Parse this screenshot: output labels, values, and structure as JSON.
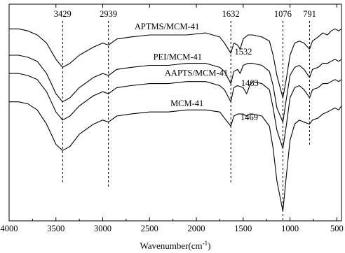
{
  "chart_data": {
    "type": "line",
    "title": "",
    "xlabel": "Wavenumber(cm",
    "xlabel_sup": "-1",
    "xlabel_close": ")",
    "ylabel": "",
    "xlim": [
      4000,
      450
    ],
    "x_reversed": true,
    "yticks_shown": false,
    "grid": false,
    "xticks": [
      {
        "value": 4000,
        "label": "4000"
      },
      {
        "value": 3500,
        "label": "3500"
      },
      {
        "value": 3000,
        "label": "3000"
      },
      {
        "value": 2500,
        "label": "2500"
      },
      {
        "value": 2000,
        "label": "2000"
      },
      {
        "value": 1500,
        "label": "1500"
      },
      {
        "value": 1000,
        "label": "1000"
      },
      {
        "value": 500,
        "label": "500"
      }
    ],
    "reference_lines": [
      {
        "x": 3429,
        "label": "3429"
      },
      {
        "x": 2939,
        "label": "2939"
      },
      {
        "x": 1632,
        "label": "1632"
      },
      {
        "x": 1076,
        "label": "1076"
      },
      {
        "x": 791,
        "label": "791"
      }
    ],
    "series": [
      {
        "name": "APTMS/MCM-41",
        "x": [
          4000,
          3900,
          3800,
          3700,
          3600,
          3500,
          3429,
          3350,
          3250,
          3100,
          3000,
          2939,
          2850,
          2700,
          2500,
          2300,
          2100,
          1900,
          1750,
          1700,
          1632,
          1600,
          1560,
          1532,
          1500,
          1450,
          1400,
          1300,
          1220,
          1180,
          1140,
          1076,
          1040,
          1000,
          950,
          900,
          850,
          791,
          760,
          700,
          650,
          600,
          560,
          520,
          480,
          450
        ],
        "y": [
          93,
          93,
          92,
          90,
          86,
          78,
          74,
          76,
          80,
          84,
          86,
          85,
          88,
          89,
          90,
          90,
          90,
          91,
          89,
          86,
          81,
          86,
          85,
          83,
          88,
          90,
          90,
          89,
          87,
          80,
          70,
          59,
          68,
          80,
          86,
          87,
          86,
          83,
          87,
          89,
          91,
          90,
          92,
          93,
          92,
          93
        ]
      },
      {
        "name": "PEI/MCM-41",
        "x": [
          4000,
          3900,
          3800,
          3700,
          3600,
          3500,
          3429,
          3350,
          3250,
          3100,
          3000,
          2939,
          2850,
          2700,
          2500,
          2300,
          2100,
          1900,
          1750,
          1700,
          1632,
          1600,
          1560,
          1532,
          1500,
          1450,
          1400,
          1300,
          1220,
          1180,
          1140,
          1076,
          1040,
          1000,
          950,
          900,
          850,
          791,
          760,
          700,
          650,
          600,
          560,
          520,
          480,
          450
        ],
        "y": [
          80,
          80,
          79,
          77,
          71,
          61,
          57,
          59,
          64,
          69,
          71,
          70,
          73,
          74,
          75,
          75,
          76,
          76,
          74,
          72,
          66,
          72,
          73,
          71,
          75,
          76,
          76,
          75,
          72,
          65,
          54,
          47,
          58,
          70,
          74,
          75,
          73,
          69,
          73,
          74,
          76,
          76,
          77,
          78,
          77,
          78
        ]
      },
      {
        "name": "AAPTS/MCM-41",
        "x": [
          4000,
          3900,
          3800,
          3700,
          3600,
          3500,
          3429,
          3350,
          3250,
          3100,
          3000,
          2939,
          2850,
          2700,
          2500,
          2300,
          2100,
          1900,
          1750,
          1700,
          1632,
          1600,
          1560,
          1500,
          1463,
          1430,
          1400,
          1300,
          1220,
          1180,
          1140,
          1076,
          1040,
          1000,
          950,
          900,
          850,
          791,
          760,
          700,
          650,
          600,
          560,
          520,
          480,
          450
        ],
        "y": [
          71,
          71,
          70,
          68,
          62,
          52,
          48,
          50,
          55,
          60,
          62,
          61,
          64,
          65,
          66,
          66,
          67,
          67,
          65,
          63,
          57,
          64,
          65,
          64,
          61,
          65,
          67,
          66,
          63,
          54,
          43,
          34,
          45,
          59,
          64,
          65,
          63,
          59,
          63,
          64,
          66,
          66,
          67,
          68,
          67,
          68
        ]
      },
      {
        "name": "MCM-41",
        "x": [
          4000,
          3900,
          3800,
          3700,
          3600,
          3500,
          3429,
          3350,
          3250,
          3100,
          3000,
          2939,
          2850,
          2700,
          2500,
          2300,
          2100,
          1900,
          1750,
          1700,
          1632,
          1600,
          1560,
          1500,
          1469,
          1430,
          1400,
          1300,
          1220,
          1180,
          1140,
          1076,
          1040,
          1000,
          950,
          900,
          850,
          791,
          760,
          700,
          650,
          600,
          560,
          520,
          480,
          450
        ],
        "y": [
          57,
          57,
          56,
          53,
          46,
          36,
          33,
          35,
          41,
          46,
          48,
          47,
          50,
          51,
          52,
          52,
          53,
          53,
          52,
          49,
          45,
          50,
          51,
          51,
          50,
          51,
          51,
          50,
          45,
          34,
          18,
          3,
          20,
          38,
          46,
          48,
          47,
          46,
          48,
          49,
          51,
          52,
          53,
          54,
          53,
          55
        ]
      }
    ],
    "series_labels": [
      {
        "name": "APTMS/MCM-41",
        "position": "top center"
      },
      {
        "name": "PEI/MCM-41",
        "position": "above second curve"
      },
      {
        "name": "AAPTS/MCM-41",
        "position": "above third curve"
      },
      {
        "name": "MCM-41",
        "position": "above bottom curve"
      }
    ],
    "peak_annotations": [
      {
        "label": "1532",
        "x": 1532
      },
      {
        "label": "1463",
        "x": 1463
      },
      {
        "label": "1469",
        "x": 1469
      }
    ]
  }
}
